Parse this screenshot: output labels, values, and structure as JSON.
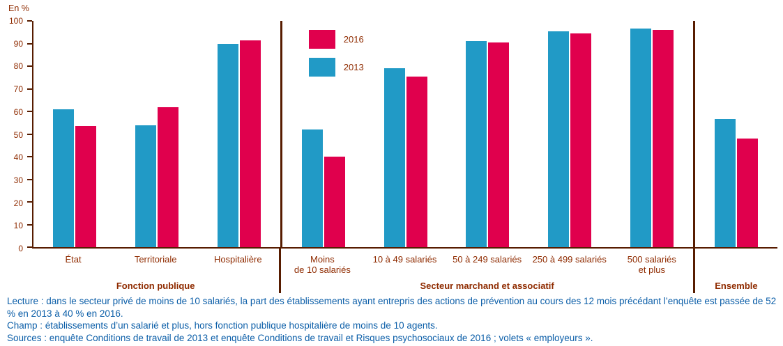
{
  "chart_data": {
    "type": "bar",
    "unit_label": "En %",
    "ylim": [
      0,
      100
    ],
    "ytick_step": 10,
    "grid": false,
    "legend_position": "top-inside",
    "series": [
      {
        "name": "2013",
        "color": "#219ac6"
      },
      {
        "name": "2016",
        "color": "#e0004d"
      }
    ],
    "legend_order": [
      "2016",
      "2013"
    ],
    "groups": [
      {
        "label": "Fonction publique",
        "categories": [
          {
            "label": "État",
            "values": [
              61,
              53.5
            ]
          },
          {
            "label": "Territoriale",
            "values": [
              54,
              62
            ]
          },
          {
            "label": "Hospitalière",
            "values": [
              90,
              91.5
            ]
          }
        ]
      },
      {
        "label": "Secteur marchand et associatif",
        "categories": [
          {
            "label": "Moins\nde 10 salariés",
            "values": [
              52,
              40
            ]
          },
          {
            "label": "10 à 49 salariés",
            "values": [
              79,
              75.5
            ]
          },
          {
            "label": "50 à 249 salariés",
            "values": [
              91,
              90.5
            ]
          },
          {
            "label": "250 à 499 salariés",
            "values": [
              95.5,
              94.5
            ]
          },
          {
            "label": "500 salariés\net plus",
            "values": [
              96.5,
              96
            ]
          }
        ]
      },
      {
        "label": "Ensemble",
        "categories": [
          {
            "label": "",
            "values": [
              56.5,
              48
            ]
          }
        ]
      }
    ]
  },
  "notes": {
    "lecture": "Lecture : dans le secteur privé de moins de 10 salariés, la part des établissements ayant entrepris des actions de prévention au cours des 12 mois précédant l’enquête est passée de 52 % en 2013 à 40 % en 2016.",
    "champ": "Champ : établissements d’un salarié et plus, hors fonction publique hospitalière de moins de 10 agents.",
    "sources": "Sources : enquête Conditions de travail de 2013 et enquête Conditions de travail et Risques psychosociaux de 2016 ; volets « employeurs »."
  }
}
